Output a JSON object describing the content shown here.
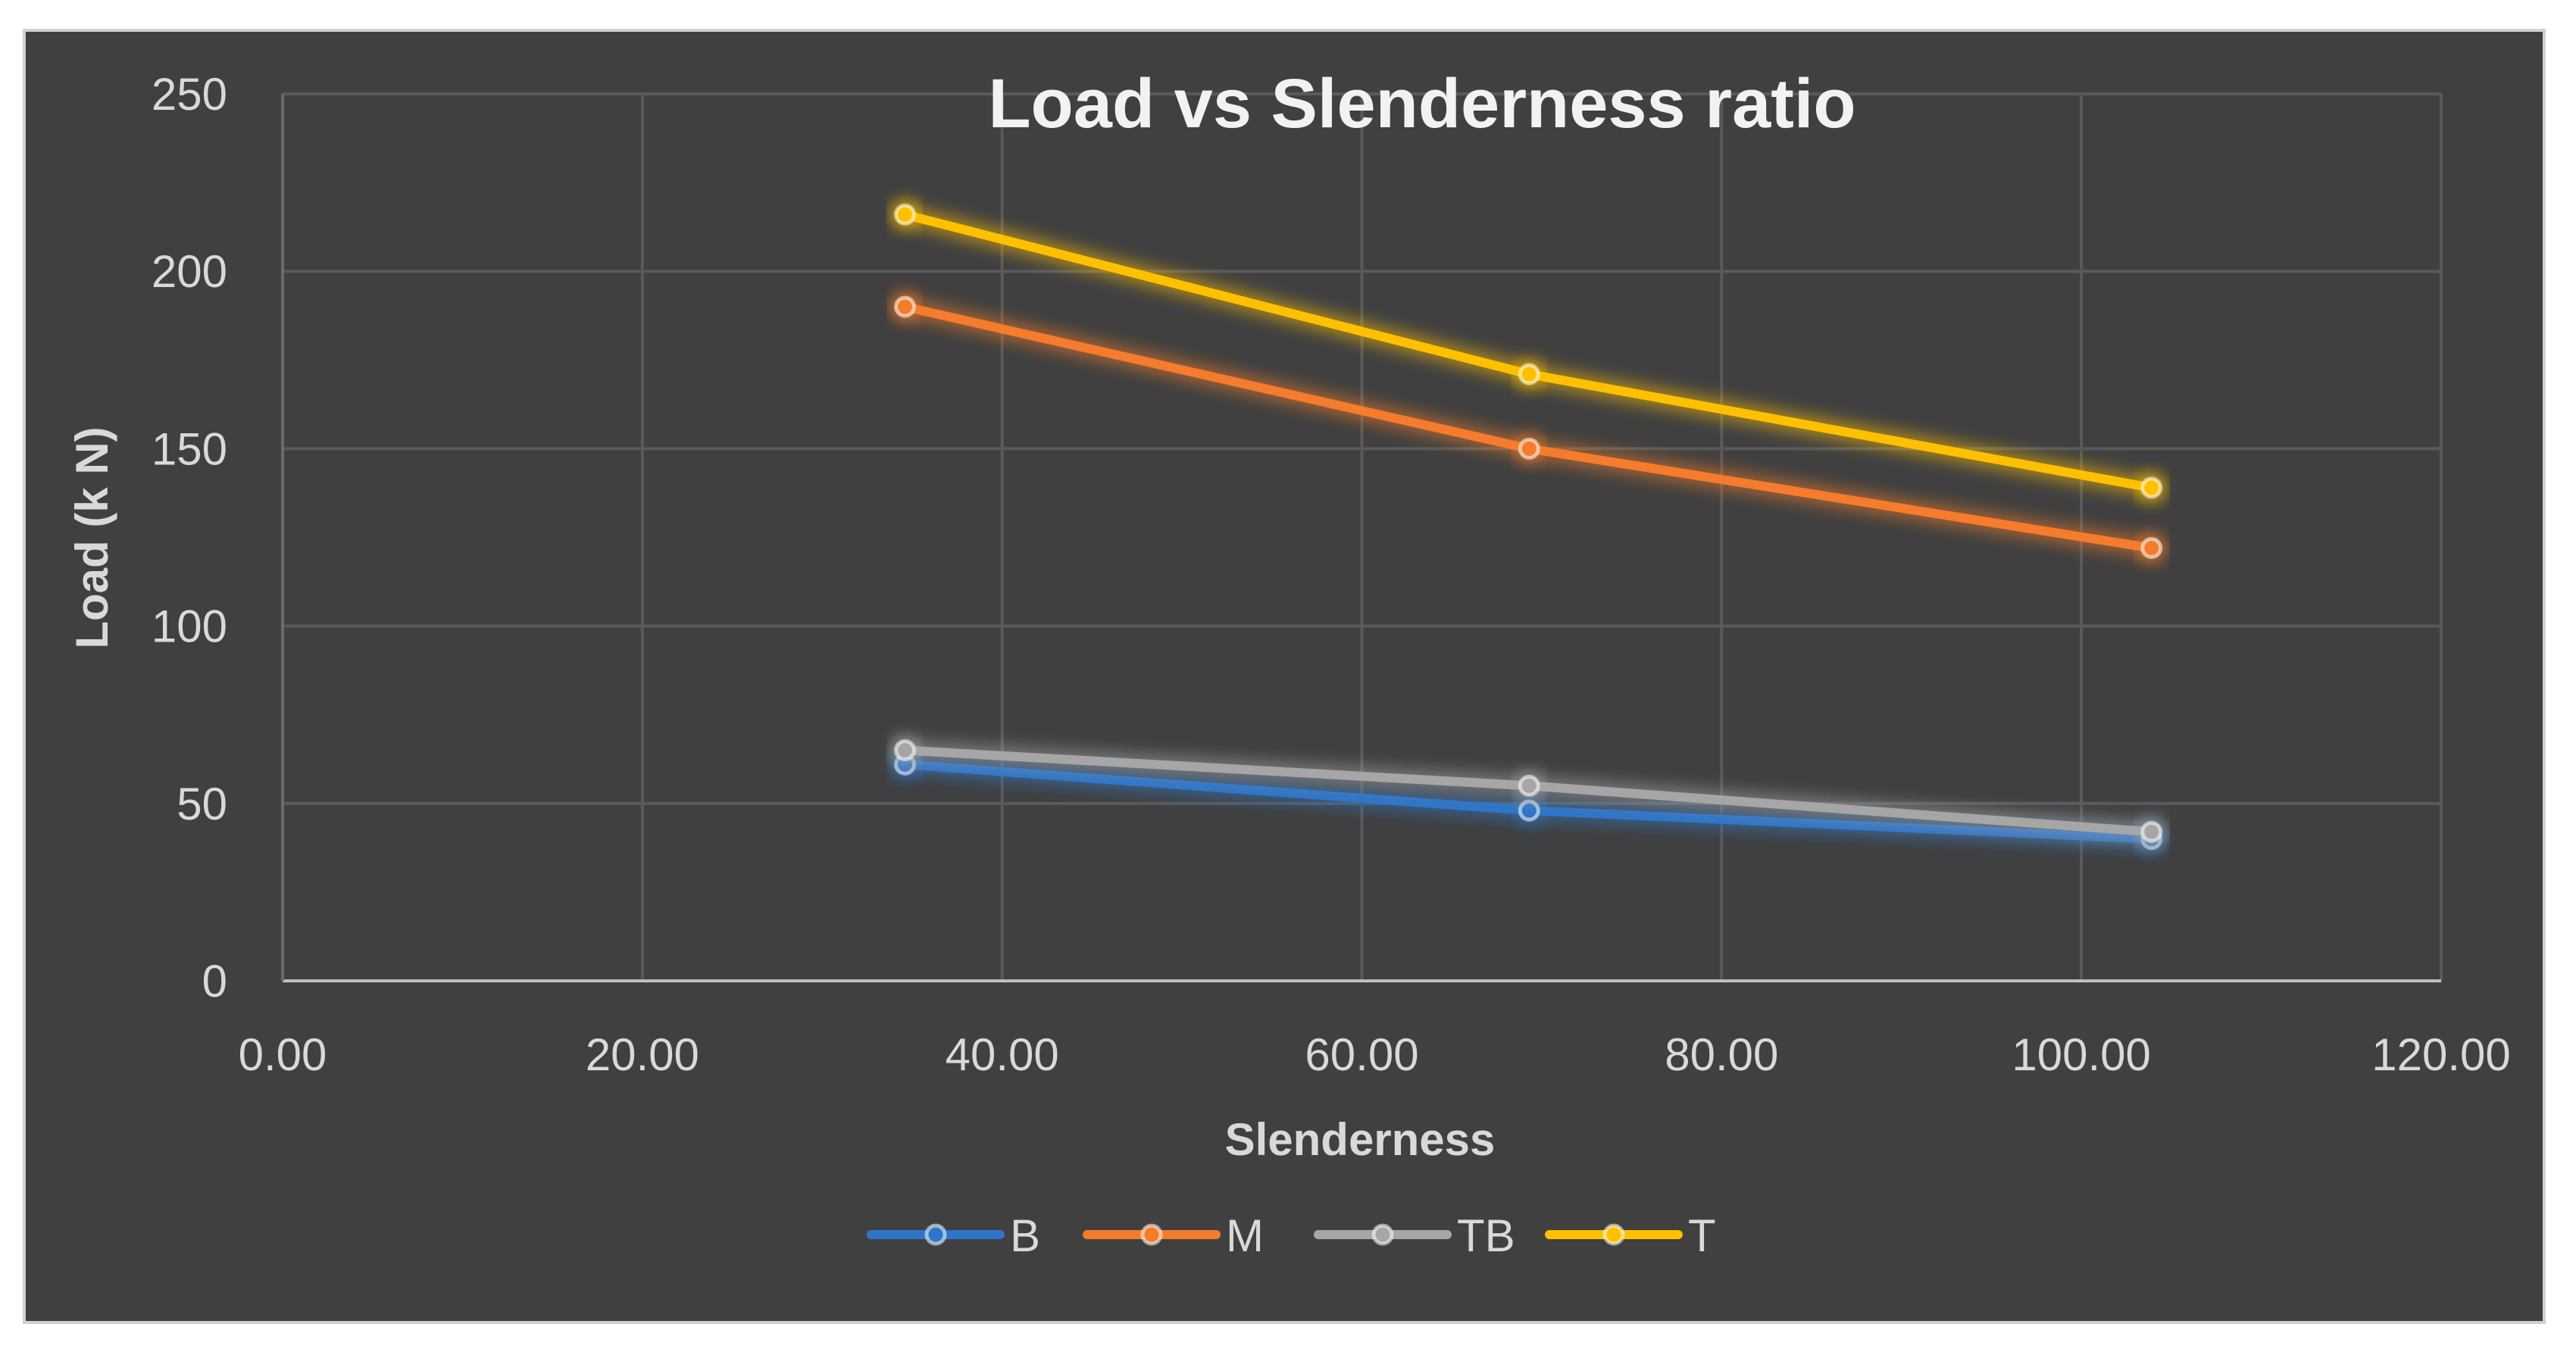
{
  "chart_data": {
    "type": "line",
    "title": "Load vs Slenderness ratio",
    "xlabel": "Slenderness",
    "ylabel": "Load (k N)",
    "xlim": [
      0,
      120
    ],
    "ylim": [
      0,
      250
    ],
    "x_ticks": [
      "0.00",
      "20.00",
      "40.00",
      "60.00",
      "80.00",
      "100.00",
      "120.00"
    ],
    "y_ticks": [
      "0",
      "50",
      "100",
      "150",
      "200",
      "250"
    ],
    "grid": true,
    "legend_position": "bottom",
    "series": [
      {
        "name": "B",
        "color": "#2e75c8",
        "x": [
          34.6,
          69.3,
          103.9
        ],
        "y": [
          61,
          48,
          40
        ]
      },
      {
        "name": "M",
        "color": "#f47c2c",
        "x": [
          34.6,
          69.3,
          103.9
        ],
        "y": [
          190,
          150,
          122
        ]
      },
      {
        "name": "TB",
        "color": "#a6a6a6",
        "x": [
          34.6,
          69.3,
          103.9
        ],
        "y": [
          65,
          55,
          42
        ]
      },
      {
        "name": "T",
        "color": "#ffc000",
        "x": [
          34.6,
          69.3,
          103.9
        ],
        "y": [
          216,
          171,
          139
        ]
      }
    ]
  }
}
